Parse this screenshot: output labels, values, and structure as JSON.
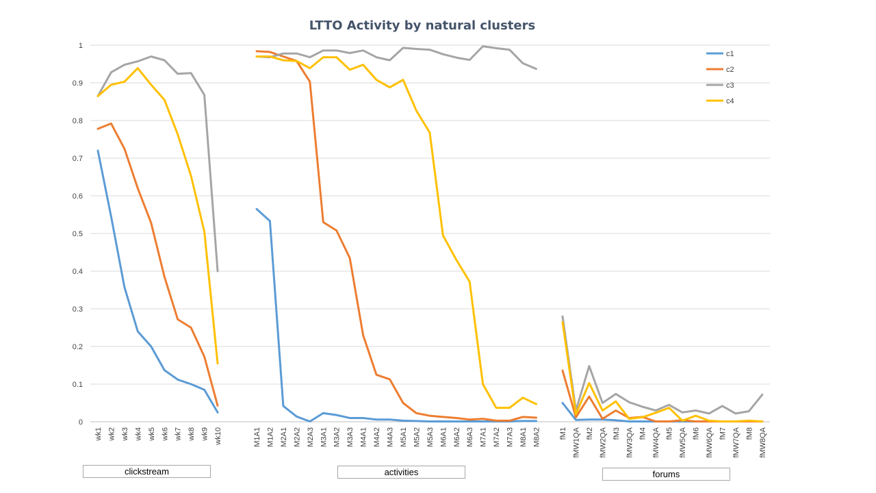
{
  "chart_data": {
    "type": "line",
    "title": "LTTO  Activity by natural clusters",
    "xlabel": "",
    "ylabel": "",
    "ylim": [
      0,
      1
    ],
    "yticks": [
      "0",
      "0.1",
      "0.2",
      "0.3",
      "0.4",
      "0.5",
      "0.6",
      "0.7",
      "0.8",
      "0.9",
      "1"
    ],
    "grid": true,
    "legend_position": "top-right",
    "colors": {
      "c1": "#5b9bd5",
      "c2": "#ed7d31",
      "c3": "#a5a5a5",
      "c4": "#ffc000",
      "grid": "#d9d9d9",
      "title": "#44546a"
    },
    "groups": [
      {
        "label": "clickstream",
        "categories": [
          "wk1",
          "wk2",
          "wk3",
          "wk4",
          "wk5",
          "wk6",
          "wk7",
          "wk8",
          "wk9",
          "wk10"
        ],
        "series": [
          {
            "name": "c1",
            "values": [
              0.72,
              0.545,
              0.357,
              0.24,
              0.2,
              0.137,
              0.112,
              0.1,
              0.085,
              0.025
            ]
          },
          {
            "name": "c2",
            "values": [
              0.778,
              0.792,
              0.725,
              0.62,
              0.528,
              0.385,
              0.272,
              0.25,
              0.173,
              0.043
            ]
          },
          {
            "name": "c3",
            "values": [
              0.865,
              0.928,
              0.948,
              0.957,
              0.97,
              0.96,
              0.924,
              0.926,
              0.868,
              0.4
            ]
          },
          {
            "name": "c4",
            "values": [
              0.865,
              0.895,
              0.903,
              0.939,
              0.895,
              0.855,
              0.763,
              0.653,
              0.505,
              0.155
            ]
          }
        ]
      },
      {
        "label": "activities",
        "categories": [
          "M1A1",
          "M1A2",
          "M2A1",
          "M2A2",
          "M2A3",
          "M3A1",
          "M3A2",
          "M3A3",
          "M4A1",
          "M4A2",
          "M4A3",
          "M5A1",
          "M5A2",
          "M5A3",
          "M6A1",
          "M6A2",
          "M6A3",
          "M7A1",
          "M7A2",
          "M7A3",
          "M8A1",
          "M8A2"
        ],
        "series": [
          {
            "name": "c1",
            "values": [
              0.565,
              0.533,
              0.042,
              0.014,
              0.001,
              0.023,
              0.018,
              0.01,
              0.01,
              0.006,
              0.006,
              0.003,
              0.002,
              0.001,
              0.001,
              0.001,
              0.001,
              0.001,
              0.001,
              0.001,
              0.002,
              0.002
            ]
          },
          {
            "name": "c2",
            "values": [
              0.984,
              0.982,
              0.97,
              0.958,
              0.903,
              0.53,
              0.508,
              0.435,
              0.23,
              0.125,
              0.113,
              0.05,
              0.023,
              0.016,
              0.013,
              0.01,
              0.006,
              0.008,
              0.003,
              0.003,
              0.013,
              0.011
            ]
          },
          {
            "name": "c3",
            "values": [
              0.97,
              0.968,
              0.978,
              0.978,
              0.968,
              0.986,
              0.986,
              0.979,
              0.986,
              0.968,
              0.96,
              0.993,
              0.99,
              0.988,
              0.976,
              0.967,
              0.961,
              0.997,
              0.992,
              0.988,
              0.952,
              0.937
            ]
          },
          {
            "name": "c4",
            "values": [
              0.97,
              0.97,
              0.96,
              0.958,
              0.939,
              0.968,
              0.968,
              0.935,
              0.948,
              0.908,
              0.888,
              0.908,
              0.826,
              0.768,
              0.495,
              0.43,
              0.372,
              0.1,
              0.037,
              0.037,
              0.064,
              0.047
            ]
          }
        ]
      },
      {
        "label": "forums",
        "categories": [
          "fM1",
          "fMW1QA",
          "fM2",
          "fMW2QA",
          "fM3",
          "fMW3QA",
          "fM4",
          "fMW4QA",
          "fM5",
          "fMW5QA",
          "fM6",
          "fMW6QA",
          "fM7",
          "fMW7QA",
          "fM8",
          "fMW8QA"
        ],
        "series": [
          {
            "name": "c1",
            "values": [
              0.05,
              0.005,
              0.006,
              0.006,
              0.004,
              0.001,
              0.001,
              0.001,
              0.001,
              0.001,
              0.001,
              0.001,
              0.001,
              0.001,
              0.001,
              0.001
            ]
          },
          {
            "name": "c2",
            "values": [
              0.136,
              0.012,
              0.067,
              0.008,
              0.03,
              0.01,
              0.013,
              0.001,
              0.001,
              0.004,
              0.001,
              0.001,
              0.001,
              0.001,
              0.001,
              0.001
            ]
          },
          {
            "name": "c3",
            "values": [
              0.28,
              0.03,
              0.148,
              0.05,
              0.074,
              0.052,
              0.04,
              0.03,
              0.045,
              0.025,
              0.03,
              0.022,
              0.042,
              0.022,
              0.028,
              0.072
            ]
          },
          {
            "name": "c4",
            "values": [
              0.265,
              0.02,
              0.103,
              0.03,
              0.054,
              0.008,
              0.012,
              0.024,
              0.037,
              0.003,
              0.016,
              0.003,
              0.001,
              0.001,
              0.003,
              0.001
            ]
          }
        ]
      }
    ]
  }
}
